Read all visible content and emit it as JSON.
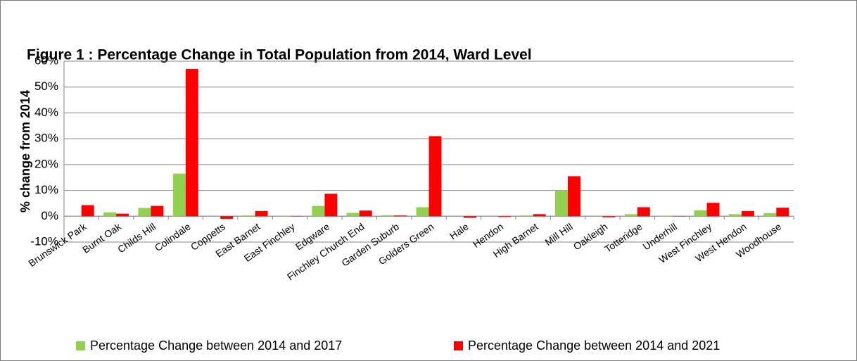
{
  "chart_data": {
    "type": "bar",
    "title": "Figure 1 : Percentage Change in Total Population from 2014, Ward Level",
    "y_label": "% change from 2014",
    "categories": [
      "Brunswick Park",
      "Burnt Oak",
      "Childs Hill",
      "Colindale",
      "Coppetts",
      "East Barnet",
      "East Finchley",
      "Edgware",
      "Finchley Church End",
      "Garden Suburb",
      "Golders Green",
      "Hale",
      "Hendon",
      "High Barnet",
      "Mill Hill",
      "Oakleigh",
      "Totteridge",
      "Underhill",
      "West Finchley",
      "West Hendon",
      "Woodhouse"
    ],
    "series": [
      {
        "name": "Percentage Change between 2014 and 2017",
        "color": "#92d050",
        "values": [
          0.1,
          1.5,
          3.2,
          16.5,
          0,
          0.3,
          0.1,
          4.0,
          1.3,
          0.4,
          3.5,
          0,
          0,
          0.3,
          10.0,
          0,
          0.8,
          0.2,
          2.3,
          0.8,
          1.2
        ]
      },
      {
        "name": "Percentage Change between 2014 and 2021",
        "color": "#ff0000",
        "values": [
          4.3,
          1.0,
          4.0,
          57.0,
          -1.0,
          2.0,
          0.1,
          8.7,
          2.2,
          0.3,
          31.0,
          -0.6,
          -0.3,
          0.8,
          15.5,
          -0.4,
          3.5,
          0.1,
          5.2,
          2.0,
          3.3
        ]
      }
    ],
    "ylim": [
      -10,
      60
    ],
    "yticks": [
      {
        "value": -10,
        "label": "-10%"
      },
      {
        "value": 0,
        "label": "0%"
      },
      {
        "value": 10,
        "label": "10%"
      },
      {
        "value": 20,
        "label": "20%"
      },
      {
        "value": 30,
        "label": "30%"
      },
      {
        "value": 40,
        "label": "40%"
      },
      {
        "value": 50,
        "label": "50%"
      },
      {
        "value": 60,
        "label": "60%"
      }
    ],
    "grid": true,
    "legend": "bottom"
  }
}
